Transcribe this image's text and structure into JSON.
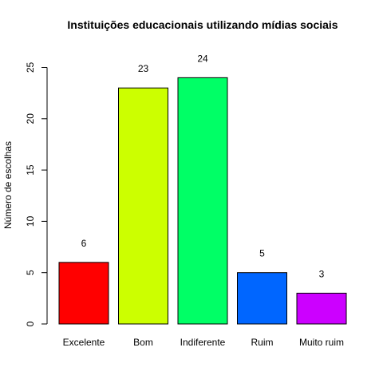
{
  "chart_data": {
    "type": "bar",
    "title": "Instituições educacionais utilizando mídias sociais",
    "xlabel": "",
    "ylabel": "Número de escolhas",
    "categories": [
      "Excelente",
      "Bom",
      "Indiferente",
      "Ruim",
      "Muito ruim"
    ],
    "values": [
      6,
      23,
      24,
      5,
      3
    ],
    "data_labels": [
      "6",
      "23",
      "24",
      "5",
      "3"
    ],
    "colors": [
      "#FF0000",
      "#CCFF00",
      "#00FF66",
      "#0066FF",
      "#CC00FF"
    ],
    "ylim": [
      0,
      25
    ],
    "yticks": [
      "0",
      "5",
      "10",
      "15",
      "20",
      "25"
    ],
    "grid": false,
    "legend": "none"
  }
}
